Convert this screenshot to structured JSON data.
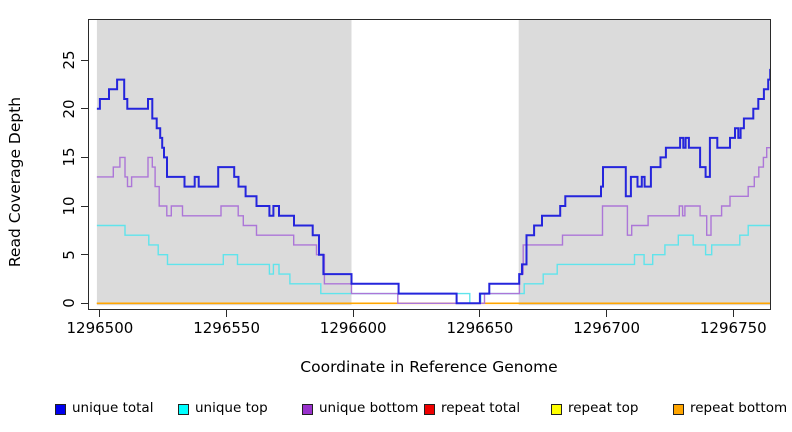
{
  "chart_data": {
    "type": "line",
    "subtype": "step-coverage-plot",
    "title": "",
    "xlabel": "Coordinate in Reference Genome",
    "ylabel": "Read Coverage Depth",
    "x_ticks": [
      1296500,
      1296550,
      1296600,
      1296650,
      1296700,
      1296750
    ],
    "y_ticks": [
      0,
      5,
      10,
      15,
      20,
      25
    ],
    "x_range": [
      1296495.3,
      1296764.9
    ],
    "y_range": [
      -0.69,
      29.23
    ],
    "grid": "off",
    "legend_position": "bottom",
    "background": {
      "panel_color": "#DBDBDB",
      "panel_x": [
        1296498.8,
        1296764.9
      ],
      "panel_y": [
        -0.2,
        29.23
      ],
      "gap_region_x": [
        1296599.3,
        1296665.3
      ],
      "gap_region_color": "#FFFFFF",
      "axis_color": "#2a2a2a"
    },
    "series": [
      {
        "id": "repeat-total",
        "name": "repeat total",
        "line_color": "#DD0000",
        "legend_color": "#EE0000",
        "line_width": 1.3,
        "points": [
          [
            1296498.8,
            0
          ]
        ],
        "xend": 1296765.4
      },
      {
        "id": "repeat-top",
        "name": "repeat top",
        "line_color": "#F5F500",
        "legend_color": "#FFFF00",
        "line_width": 1.3,
        "points": [
          [
            1296498.8,
            0
          ]
        ],
        "xend": 1296765.4
      },
      {
        "id": "repeat-bottom",
        "name": "repeat bottom",
        "line_color": "#FFA500",
        "legend_color": "#FFA500",
        "line_width": 1.6,
        "points": [
          [
            1296498.8,
            0
          ]
        ],
        "xend": 1296765.4
      },
      {
        "id": "unique-top",
        "name": "unique top",
        "line_color": "#5FE4EC",
        "legend_color": "#00FFFF",
        "line_width": 1.4,
        "points": [
          [
            1296498.8,
            8
          ],
          [
            1296509.9,
            7
          ],
          [
            1296519.3,
            6
          ],
          [
            1296523.0,
            5
          ],
          [
            1296526.7,
            4
          ],
          [
            1296548.7,
            5
          ],
          [
            1296554.3,
            4
          ],
          [
            1296566.9,
            3
          ],
          [
            1296568.5,
            4
          ],
          [
            1296570.7,
            3
          ],
          [
            1296575.0,
            2
          ],
          [
            1296587.2,
            1
          ],
          [
            1296646.0,
            0
          ],
          [
            1296650.3,
            1
          ],
          [
            1296667.5,
            2
          ],
          [
            1296675.0,
            3
          ],
          [
            1296680.5,
            4
          ],
          [
            1296711.0,
            5
          ],
          [
            1296714.8,
            4
          ],
          [
            1296718.2,
            5
          ],
          [
            1296723.0,
            6
          ],
          [
            1296728.3,
            7
          ],
          [
            1296734.2,
            6
          ],
          [
            1296739.1,
            5
          ],
          [
            1296741.5,
            6
          ],
          [
            1296752.6,
            7
          ],
          [
            1296755.9,
            8
          ]
        ],
        "xend": 1296765.4
      },
      {
        "id": "unique-bottom",
        "name": "unique bottom",
        "line_color": "#AC76D8",
        "legend_color": "#9932CC",
        "line_width": 1.4,
        "points": [
          [
            1296498.8,
            13
          ],
          [
            1296505.3,
            14
          ],
          [
            1296507.9,
            15
          ],
          [
            1296509.9,
            13
          ],
          [
            1296510.9,
            12
          ],
          [
            1296512.5,
            13
          ],
          [
            1296519.0,
            15
          ],
          [
            1296520.7,
            14
          ],
          [
            1296521.8,
            12
          ],
          [
            1296523.4,
            10
          ],
          [
            1296526.4,
            9
          ],
          [
            1296528.2,
            10
          ],
          [
            1296532.6,
            9
          ],
          [
            1296547.8,
            10
          ],
          [
            1296554.6,
            9
          ],
          [
            1296556.6,
            8
          ],
          [
            1296561.8,
            7
          ],
          [
            1296576.5,
            6
          ],
          [
            1296585.5,
            5
          ],
          [
            1296588.6,
            2
          ],
          [
            1296599.3,
            1
          ],
          [
            1296617.6,
            0
          ],
          [
            1296651.8,
            1
          ],
          [
            1296665.6,
            3
          ],
          [
            1296667.1,
            6
          ],
          [
            1296682.6,
            7
          ],
          [
            1296698.4,
            10
          ],
          [
            1296708.2,
            7
          ],
          [
            1296709.9,
            8
          ],
          [
            1296716.4,
            9
          ],
          [
            1296728.7,
            10
          ],
          [
            1296730.0,
            9
          ],
          [
            1296730.9,
            10
          ],
          [
            1296736.9,
            9
          ],
          [
            1296739.5,
            7
          ],
          [
            1296741.2,
            9
          ],
          [
            1296745.4,
            10
          ],
          [
            1296748.7,
            11
          ],
          [
            1296755.9,
            12
          ],
          [
            1296758.3,
            13
          ],
          [
            1296760.1,
            14
          ],
          [
            1296761.9,
            15
          ],
          [
            1296763.2,
            16
          ]
        ],
        "xend": 1296765.4
      },
      {
        "id": "unique-total",
        "name": "unique total",
        "line_color": "#2525DC",
        "legend_color": "#0000EE",
        "line_width": 2,
        "points": [
          [
            1296498.8,
            20
          ],
          [
            1296500.0,
            21
          ],
          [
            1296503.6,
            22
          ],
          [
            1296506.8,
            23
          ],
          [
            1296509.6,
            21
          ],
          [
            1296510.8,
            20
          ],
          [
            1296519.0,
            21
          ],
          [
            1296520.7,
            19
          ],
          [
            1296522.4,
            18
          ],
          [
            1296523.8,
            17
          ],
          [
            1296524.6,
            16
          ],
          [
            1296525.3,
            15
          ],
          [
            1296526.5,
            13
          ],
          [
            1296533.4,
            12
          ],
          [
            1296537.4,
            13
          ],
          [
            1296539.0,
            12
          ],
          [
            1296546.7,
            14
          ],
          [
            1296553.0,
            13
          ],
          [
            1296554.7,
            12
          ],
          [
            1296557.5,
            11
          ],
          [
            1296561.8,
            10
          ],
          [
            1296566.9,
            9
          ],
          [
            1296568.5,
            10
          ],
          [
            1296570.7,
            9
          ],
          [
            1296576.6,
            8
          ],
          [
            1296584.0,
            7
          ],
          [
            1296586.5,
            5
          ],
          [
            1296588.2,
            3
          ],
          [
            1296599.3,
            2
          ],
          [
            1296617.9,
            1
          ],
          [
            1296640.8,
            0
          ],
          [
            1296650.0,
            1
          ],
          [
            1296653.7,
            2
          ],
          [
            1296665.5,
            3
          ],
          [
            1296666.6,
            4
          ],
          [
            1296668.4,
            7
          ],
          [
            1296671.4,
            8
          ],
          [
            1296674.5,
            9
          ],
          [
            1296681.7,
            10
          ],
          [
            1296683.7,
            11
          ],
          [
            1296697.8,
            12
          ],
          [
            1296698.6,
            14
          ],
          [
            1296707.6,
            11
          ],
          [
            1296709.6,
            13
          ],
          [
            1296712.2,
            12
          ],
          [
            1296713.9,
            13
          ],
          [
            1296715.0,
            12
          ],
          [
            1296717.5,
            14
          ],
          [
            1296721.3,
            15
          ],
          [
            1296723.4,
            16
          ],
          [
            1296729.0,
            17
          ],
          [
            1296730.3,
            16
          ],
          [
            1296731.2,
            17
          ],
          [
            1296732.5,
            16
          ],
          [
            1296736.9,
            14
          ],
          [
            1296739.1,
            13
          ],
          [
            1296740.8,
            17
          ],
          [
            1296743.7,
            16
          ],
          [
            1296748.7,
            17
          ],
          [
            1296750.7,
            18
          ],
          [
            1296752.0,
            17
          ],
          [
            1296752.9,
            18
          ],
          [
            1296754.2,
            19
          ],
          [
            1296757.9,
            20
          ],
          [
            1296759.9,
            21
          ],
          [
            1296762.1,
            22
          ],
          [
            1296763.8,
            23
          ],
          [
            1296764.6,
            24
          ]
        ],
        "xend": 1296765.4
      }
    ],
    "legend": [
      {
        "series_id": "unique-total",
        "label": "unique total"
      },
      {
        "series_id": "unique-top",
        "label": "unique top"
      },
      {
        "series_id": "unique-bottom",
        "label": "unique bottom"
      },
      {
        "series_id": "repeat-total",
        "label": "repeat total"
      },
      {
        "series_id": "repeat-top",
        "label": "repeat top"
      },
      {
        "series_id": "repeat-bottom",
        "label": "repeat bottom"
      }
    ]
  }
}
